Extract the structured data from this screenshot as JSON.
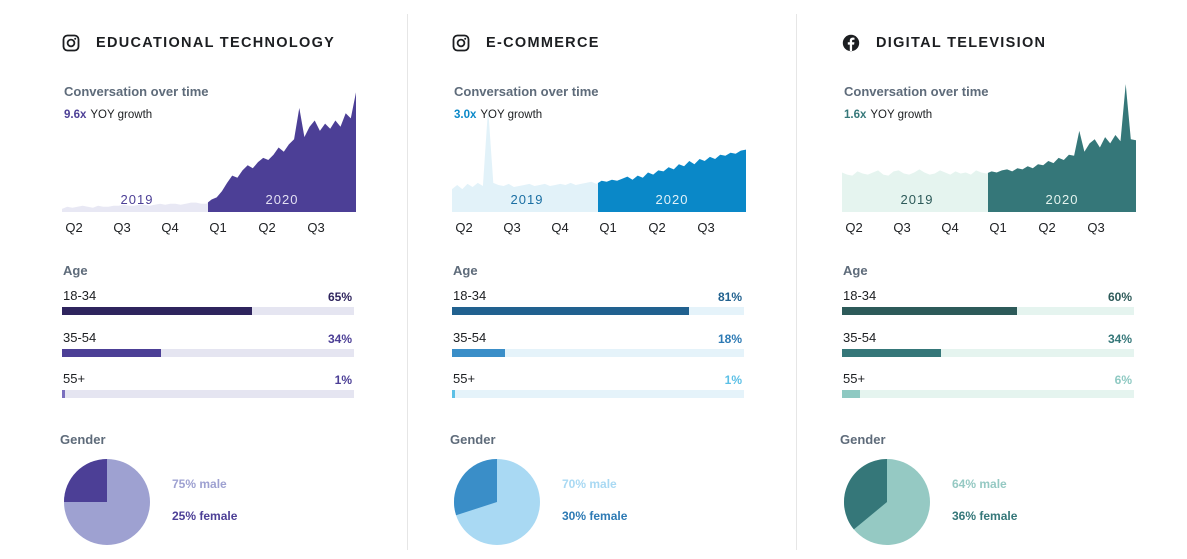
{
  "chart_data": [
    {
      "type": "area",
      "title": "EDUCATIONAL TECHNOLOGY",
      "icon": "instagram-icon",
      "conversation_title": "Conversation over time",
      "growth_multiplier": "9.6x",
      "growth_label": "YOY growth",
      "x_ticks": [
        "Q2",
        "Q3",
        "Q4",
        "Q1",
        "Q2",
        "Q3"
      ],
      "period_labels": [
        "2019",
        "2020"
      ],
      "series": [
        {
          "values": [
            3,
            5,
            4,
            5,
            6,
            5,
            4,
            6,
            5,
            5,
            6,
            6,
            7,
            6,
            6,
            7,
            7,
            6,
            7,
            8,
            7,
            8,
            8,
            7,
            8,
            9,
            9,
            8,
            8,
            12,
            14,
            20,
            28,
            35,
            33,
            40,
            45,
            42,
            48,
            52,
            50,
            55,
            62,
            58,
            65,
            70,
            100,
            72,
            82,
            88,
            78,
            85,
            80,
            88,
            82,
            95,
            90,
            115
          ]
        }
      ],
      "colors": {
        "light": "#e8e8f4",
        "dark": "#4c3f96",
        "year1": "#4c3f96",
        "year2": "#e3e0f3"
      },
      "age_title": "Age",
      "age": [
        {
          "label": "18-34",
          "value": 65,
          "text": "65%",
          "fill": "#2e245d",
          "track": "#e5e5f1",
          "pct_color": "#2e245d"
        },
        {
          "label": "35-54",
          "value": 34,
          "text": "34%",
          "fill": "#4c3f96",
          "track": "#e5e5f1",
          "pct_color": "#4c3f96"
        },
        {
          "label": "55+",
          "value": 1,
          "text": "1%",
          "fill": "#7a6fbe",
          "track": "#e5e5f1",
          "pct_color": "#4c3f96"
        }
      ],
      "gender_title": "Gender",
      "gender": [
        {
          "label": "75% male",
          "value": 75,
          "color": "#9ea1d1",
          "text_color": "#9ea1d1"
        },
        {
          "label": "25% female",
          "value": 25,
          "color": "#4c3f96",
          "text_color": "#4c3f96"
        }
      ]
    },
    {
      "type": "area",
      "title": "E-COMMERCE",
      "icon": "instagram-icon",
      "conversation_title": "Conversation over time",
      "growth_multiplier": "3.0x",
      "growth_label": "YOY growth",
      "x_ticks": [
        "Q2",
        "Q3",
        "Q4",
        "Q1",
        "Q2",
        "Q3"
      ],
      "period_labels": [
        "2019",
        "2020"
      ],
      "series": [
        {
          "values": [
            22,
            26,
            22,
            27,
            24,
            28,
            25,
            100,
            28,
            26,
            25,
            27,
            24,
            25,
            26,
            27,
            25,
            26,
            27,
            25,
            26,
            27,
            26,
            28,
            26,
            27,
            28,
            29,
            27,
            30,
            29,
            31,
            30,
            32,
            34,
            31,
            35,
            33,
            38,
            36,
            40,
            39,
            43,
            41,
            46,
            44,
            49,
            46,
            51,
            49,
            53,
            51,
            55,
            54,
            57,
            56,
            59,
            60
          ]
        }
      ],
      "colors": {
        "light": "#e2f2f9",
        "dark": "#0a88c8",
        "year1": "#1b6fa3",
        "year2": "#e2f2f9"
      },
      "age_title": "Age",
      "age": [
        {
          "label": "18-34",
          "value": 81,
          "text": "81%",
          "fill": "#21618f",
          "track": "#e5f3fa",
          "pct_color": "#21618f"
        },
        {
          "label": "35-54",
          "value": 18,
          "text": "18%",
          "fill": "#3a8ec8",
          "track": "#e5f3fa",
          "pct_color": "#2d7ab4"
        },
        {
          "label": "55+",
          "value": 1,
          "text": "1%",
          "fill": "#5cc0e6",
          "track": "#e5f3fa",
          "pct_color": "#5cc0e6"
        }
      ],
      "gender_title": "Gender",
      "gender": [
        {
          "label": "70% male",
          "value": 70,
          "color": "#a9d9f3",
          "text_color": "#a9d9f3"
        },
        {
          "label": "30% female",
          "value": 30,
          "color": "#3a8ec8",
          "text_color": "#2d7ab4"
        }
      ]
    },
    {
      "type": "area",
      "title": "DIGITAL TELEVISION",
      "icon": "facebook-icon",
      "conversation_title": "Conversation over time",
      "growth_multiplier": "1.6x",
      "growth_label": "YOY growth",
      "x_ticks": [
        "Q2",
        "Q3",
        "Q4",
        "Q1",
        "Q2",
        "Q3"
      ],
      "period_labels": [
        "2019",
        "2020"
      ],
      "series": [
        {
          "values": [
            38,
            36,
            35,
            39,
            37,
            36,
            38,
            40,
            36,
            35,
            39,
            40,
            37,
            36,
            38,
            41,
            38,
            36,
            37,
            40,
            38,
            36,
            39,
            37,
            38,
            36,
            40,
            38,
            37,
            39,
            38,
            40,
            41,
            39,
            42,
            41,
            44,
            42,
            46,
            45,
            49,
            47,
            52,
            50,
            55,
            54,
            78,
            58,
            66,
            70,
            62,
            72,
            66,
            74,
            68,
            123,
            70,
            69
          ]
        }
      ],
      "colors": {
        "light": "#e5f4ef",
        "dark": "#357779",
        "year1": "#2d5a59",
        "year2": "#e5f4ef"
      },
      "age_title": "Age",
      "age": [
        {
          "label": "18-34",
          "value": 60,
          "text": "60%",
          "fill": "#2d5a59",
          "track": "#e5f4ef",
          "pct_color": "#2d5a59"
        },
        {
          "label": "35-54",
          "value": 34,
          "text": "34%",
          "fill": "#357779",
          "track": "#e5f4ef",
          "pct_color": "#357779"
        },
        {
          "label": "55+",
          "value": 6,
          "text": "6%",
          "fill": "#8ec9c2",
          "track": "#e5f4ef",
          "pct_color": "#8ec9c2"
        }
      ],
      "gender_title": "Gender",
      "gender": [
        {
          "label": "64% male",
          "value": 64,
          "color": "#95c9c3",
          "text_color": "#95c9c3"
        },
        {
          "label": "36% female",
          "value": 36,
          "color": "#357779",
          "text_color": "#357779"
        }
      ]
    }
  ]
}
